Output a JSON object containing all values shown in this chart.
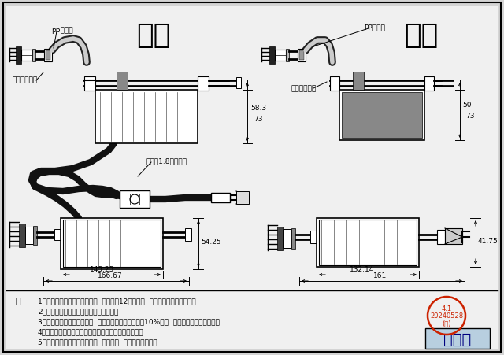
{
  "bg_color": "#d4d4d4",
  "line_color": "#000000",
  "text_color": "#000000",
  "red_color": "#cc2200",
  "blue_box_color": "#b8cfe0",
  "new_label": "新款",
  "old_label": "旧款",
  "pp_label_new": "pp保护套",
  "pp_label_old": "PP保护套",
  "detach_new": "可拆卸释放器",
  "detach_old": "可拆卸释放器",
  "switch_label": "带开关1.8米电源线",
  "dim1": "58.3",
  "dim2": "73",
  "dim3": "50",
  "dim4": "73",
  "dim5": "145.25",
  "dim6": "166.67",
  "dim7": "54.25",
  "dim8": "132.14",
  "dim9": "161",
  "dim10": "41.75",
  "note_title": "注",
  "notes": [
    "1、新款稳定性比旧款大幅提升  每天使用12小时计算  使用寿命可达五年之久。",
    "2、新款当次采用了轻量化离子变换装置。",
    "3、离子导放器采用了刷炭型  负离子导放量比旧款提升10%左右  噪音可达完全静音状态。",
    "4、新款一如既往的继承了旧款可折卸导放器优良方案。",
    "5、新款壳体采用了上下箱合体  强度更大  绝缘性能也更好。"
  ],
  "stamp_lines": [
    "4.1",
    "20240528",
    "(乙)"
  ],
  "public_label": "可公布",
  "font_path": null
}
